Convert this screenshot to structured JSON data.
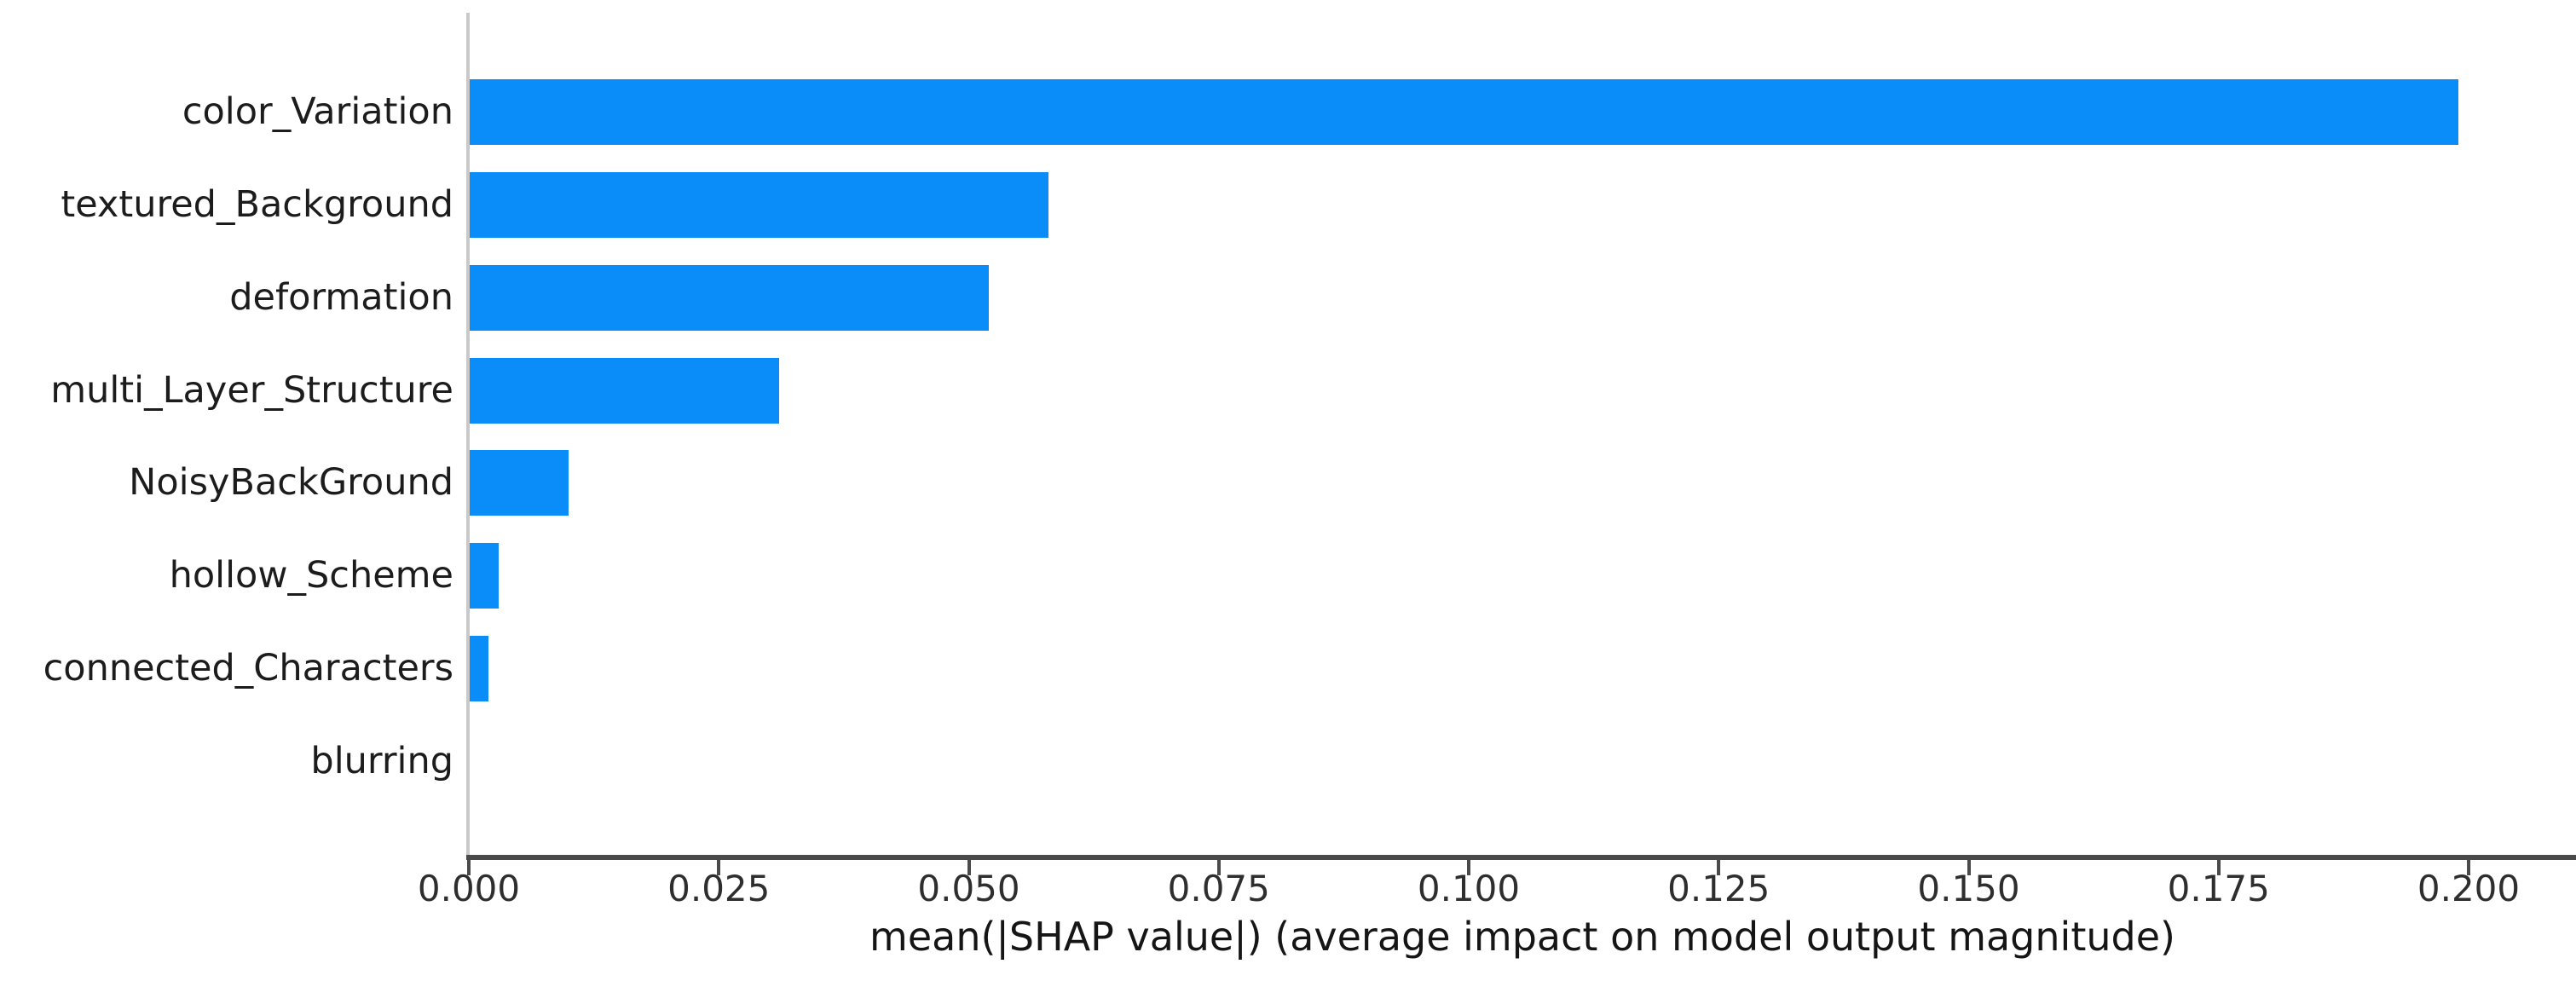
{
  "figure": {
    "background": "#ffffff"
  },
  "chart_data": {
    "type": "bar",
    "orientation": "horizontal",
    "title": "",
    "xlabel": "mean(|SHAP value|) (average impact on model output magnitude)",
    "ylabel": "",
    "categories": [
      "color_Variation",
      "textured_Background",
      "deformation",
      "multi_Layer_Structure",
      "NoisyBackGround",
      "hollow_Scheme",
      "connected_Characters",
      "blurring"
    ],
    "values": [
      0.199,
      0.058,
      0.052,
      0.031,
      0.01,
      0.003,
      0.002,
      0.0
    ],
    "xticks": [
      0.0,
      0.025,
      0.05,
      0.075,
      0.1,
      0.125,
      0.15,
      0.175,
      0.2
    ],
    "xtick_labels": [
      "0.000",
      "0.025",
      "0.050",
      "0.075",
      "0.100",
      "0.125",
      "0.150",
      "0.175",
      "0.200"
    ],
    "xlim": [
      0,
      0.2107
    ],
    "grid": false,
    "legend": null,
    "bar_color": "#0a8df8",
    "axis_color": "#4a4a4a",
    "left_spine_color": "#c9c9c9",
    "text_color": "#1c1c1c"
  }
}
